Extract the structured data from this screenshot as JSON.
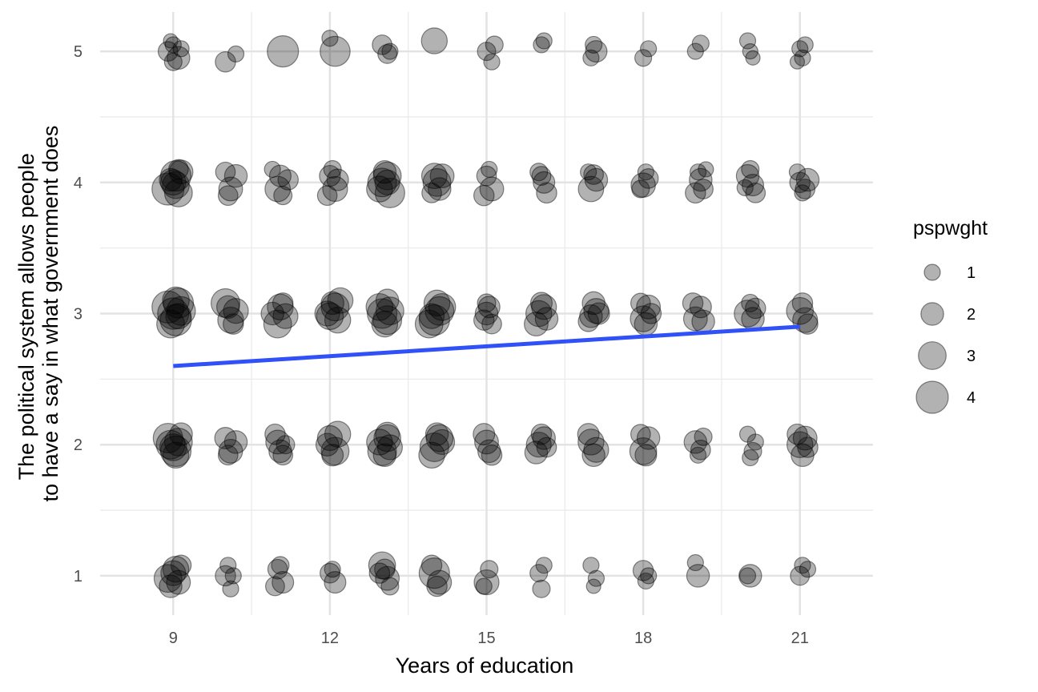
{
  "chart_data": {
    "type": "scatter",
    "xlabel": "Years of education",
    "ylabel_lines": [
      "The political system allows people",
      "to have a say in what government does"
    ],
    "x_ticks": [
      "9",
      "12",
      "15",
      "18",
      "21"
    ],
    "y_ticks": [
      "1",
      "2",
      "3",
      "4",
      "5"
    ],
    "xlim": [
      7.6,
      22.4
    ],
    "ylim": [
      0.7,
      5.3
    ],
    "grid": true,
    "legend": {
      "title": "pspwght",
      "position": "right",
      "labels": [
        "1",
        "2",
        "3",
        "4"
      ],
      "weights": [
        1,
        2,
        3,
        4
      ]
    },
    "point_color": "#000000",
    "point_alpha": 0.3,
    "trend_line": {
      "x": [
        9,
        21
      ],
      "y": [
        2.6,
        2.9
      ],
      "color": "#3050f8"
    },
    "points": [
      [
        9.0,
        5.05,
        1.0
      ],
      [
        8.9,
        5.0,
        1.5
      ],
      [
        9.1,
        4.95,
        2.0
      ],
      [
        9.0,
        4.92,
        1.2
      ],
      [
        9.15,
        5.02,
        1.0
      ],
      [
        8.95,
        5.08,
        0.8
      ],
      [
        10.0,
        4.92,
        1.6
      ],
      [
        10.2,
        4.98,
        1.0
      ],
      [
        11.1,
        5.0,
        3.8
      ],
      [
        12.0,
        5.1,
        1.0
      ],
      [
        12.1,
        5.0,
        3.5
      ],
      [
        13.0,
        5.05,
        1.5
      ],
      [
        13.1,
        4.98,
        1.4
      ],
      [
        13.15,
        5.0,
        1.0
      ],
      [
        14.0,
        5.08,
        2.6
      ],
      [
        15.0,
        5.0,
        1.3
      ],
      [
        15.1,
        4.92,
        1.0
      ],
      [
        15.15,
        5.05,
        1.2
      ],
      [
        16.05,
        5.05,
        1.0
      ],
      [
        16.1,
        5.08,
        1.0
      ],
      [
        17.0,
        4.95,
        1.0
      ],
      [
        17.1,
        5.0,
        1.8
      ],
      [
        17.05,
        5.05,
        1.1
      ],
      [
        18.0,
        4.95,
        1.1
      ],
      [
        18.1,
        5.02,
        1.0
      ],
      [
        19.0,
        5.0,
        1.0
      ],
      [
        19.1,
        5.06,
        1.1
      ],
      [
        20.0,
        5.08,
        1.0
      ],
      [
        20.05,
        5.0,
        0.9
      ],
      [
        20.1,
        4.95,
        0.8
      ],
      [
        21.0,
        5.02,
        1.0
      ],
      [
        20.95,
        4.92,
        0.8
      ],
      [
        21.1,
        5.05,
        1.0
      ],
      [
        21.05,
        4.95,
        1.0
      ],
      [
        8.9,
        3.95,
        4.0
      ],
      [
        9.05,
        4.05,
        3.6
      ],
      [
        9.1,
        3.92,
        3.0
      ],
      [
        9.0,
        4.0,
        2.5
      ],
      [
        9.15,
        4.08,
        2.2
      ],
      [
        8.95,
        4.02,
        2.0
      ],
      [
        9.05,
        3.98,
        2.8
      ],
      [
        9.1,
        4.1,
        1.5
      ],
      [
        10.0,
        4.08,
        1.5
      ],
      [
        10.1,
        3.95,
        2.2
      ],
      [
        10.2,
        4.05,
        2.0
      ],
      [
        10.05,
        3.9,
        1.5
      ],
      [
        11.0,
        3.95,
        2.5
      ],
      [
        11.05,
        4.05,
        1.8
      ],
      [
        11.1,
        3.9,
        1.3
      ],
      [
        10.9,
        4.1,
        1.0
      ],
      [
        11.2,
        4.02,
        1.6
      ],
      [
        12.0,
        4.05,
        1.7
      ],
      [
        12.1,
        3.95,
        2.4
      ],
      [
        11.95,
        3.9,
        1.5
      ],
      [
        12.15,
        4.02,
        1.8
      ],
      [
        12.05,
        4.1,
        1.2
      ],
      [
        13.0,
        4.0,
        3.2
      ],
      [
        13.1,
        4.05,
        3.0
      ],
      [
        12.95,
        3.95,
        2.6
      ],
      [
        13.15,
        3.92,
        3.4
      ],
      [
        13.05,
        4.08,
        2.0
      ],
      [
        13.1,
        4.0,
        2.4
      ],
      [
        14.0,
        4.05,
        2.5
      ],
      [
        14.1,
        3.95,
        2.0
      ],
      [
        13.95,
        3.92,
        1.5
      ],
      [
        14.15,
        4.05,
        2.2
      ],
      [
        14.05,
        4.0,
        3.0
      ],
      [
        15.0,
        4.05,
        1.5
      ],
      [
        15.1,
        3.95,
        2.2
      ],
      [
        14.95,
        3.9,
        1.6
      ],
      [
        15.05,
        4.1,
        1.0
      ],
      [
        16.0,
        4.08,
        1.2
      ],
      [
        16.1,
        4.0,
        1.8
      ],
      [
        16.15,
        3.92,
        1.6
      ],
      [
        16.05,
        4.05,
        1.4
      ],
      [
        17.0,
        3.95,
        2.5
      ],
      [
        17.1,
        4.02,
        2.0
      ],
      [
        17.05,
        4.06,
        1.5
      ],
      [
        16.95,
        4.08,
        1.0
      ],
      [
        18.0,
        3.98,
        2.3
      ],
      [
        18.1,
        4.03,
        1.5
      ],
      [
        17.95,
        3.95,
        1.2
      ],
      [
        18.05,
        4.08,
        1.0
      ],
      [
        19.0,
        3.92,
        1.6
      ],
      [
        19.1,
        4.02,
        2.0
      ],
      [
        19.15,
        3.95,
        1.5
      ],
      [
        19.05,
        4.08,
        1.0
      ],
      [
        19.2,
        4.1,
        0.9
      ],
      [
        20.0,
        4.05,
        2.0
      ],
      [
        20.1,
        3.98,
        1.8
      ],
      [
        20.15,
        3.92,
        1.5
      ],
      [
        20.05,
        4.1,
        1.2
      ],
      [
        19.95,
        3.96,
        1.0
      ],
      [
        21.0,
        4.0,
        1.6
      ],
      [
        21.1,
        3.95,
        1.5
      ],
      [
        21.15,
        4.02,
        2.0
      ],
      [
        20.95,
        4.08,
        1.0
      ],
      [
        21.05,
        3.92,
        1.0
      ],
      [
        8.9,
        3.05,
        4.0
      ],
      [
        9.05,
        2.95,
        3.8
      ],
      [
        9.1,
        3.08,
        3.5
      ],
      [
        9.0,
        3.0,
        3.8
      ],
      [
        8.95,
        2.92,
        3.0
      ],
      [
        9.15,
        3.02,
        3.2
      ],
      [
        9.05,
        3.1,
        2.8
      ],
      [
        9.1,
        2.98,
        2.5
      ],
      [
        10.0,
        3.08,
        3.2
      ],
      [
        10.1,
        2.95,
        2.6
      ],
      [
        10.2,
        3.02,
        2.4
      ],
      [
        10.05,
        3.05,
        2.0
      ],
      [
        10.15,
        2.92,
        1.6
      ],
      [
        11.0,
        2.92,
        3.0
      ],
      [
        11.05,
        3.05,
        2.6
      ],
      [
        10.9,
        3.0,
        2.0
      ],
      [
        11.15,
        2.98,
        2.4
      ],
      [
        11.1,
        3.08,
        1.6
      ],
      [
        12.0,
        2.98,
        2.8
      ],
      [
        12.1,
        3.05,
        3.0
      ],
      [
        11.95,
        3.0,
        2.4
      ],
      [
        12.15,
        2.95,
        2.6
      ],
      [
        12.05,
        3.08,
        2.0
      ],
      [
        12.2,
        3.1,
        2.5
      ],
      [
        13.0,
        3.0,
        3.4
      ],
      [
        13.1,
        2.95,
        3.2
      ],
      [
        12.95,
        3.05,
        2.8
      ],
      [
        13.15,
        3.02,
        3.0
      ],
      [
        13.05,
        2.92,
        2.6
      ],
      [
        13.1,
        3.1,
        2.0
      ],
      [
        14.0,
        2.95,
        3.6
      ],
      [
        14.1,
        3.02,
        3.2
      ],
      [
        13.9,
        2.92,
        3.0
      ],
      [
        14.15,
        3.05,
        2.8
      ],
      [
        14.05,
        3.08,
        2.6
      ],
      [
        13.95,
        2.98,
        2.4
      ],
      [
        15.0,
        3.0,
        2.0
      ],
      [
        15.05,
        3.05,
        1.8
      ],
      [
        14.95,
        2.95,
        1.6
      ],
      [
        15.1,
        2.92,
        1.5
      ],
      [
        15.0,
        3.08,
        1.3
      ],
      [
        16.0,
        3.0,
        2.6
      ],
      [
        16.1,
        3.05,
        2.4
      ],
      [
        15.95,
        2.92,
        2.2
      ],
      [
        16.05,
        3.08,
        1.8
      ],
      [
        16.15,
        2.96,
        2.0
      ],
      [
        17.0,
        2.98,
        2.0
      ],
      [
        17.1,
        3.02,
        2.4
      ],
      [
        16.95,
        2.94,
        1.6
      ],
      [
        17.05,
        3.08,
        2.0
      ],
      [
        17.15,
        3.0,
        1.8
      ],
      [
        18.0,
        2.96,
        2.6
      ],
      [
        18.1,
        3.05,
        2.2
      ],
      [
        17.95,
        3.08,
        1.5
      ],
      [
        18.05,
        2.92,
        2.0
      ],
      [
        18.15,
        3.0,
        1.6
      ],
      [
        19.0,
        2.96,
        2.2
      ],
      [
        19.1,
        3.05,
        1.8
      ],
      [
        18.95,
        3.08,
        1.6
      ],
      [
        19.15,
        2.94,
        2.0
      ],
      [
        20.0,
        3.0,
        2.8
      ],
      [
        20.1,
        2.96,
        2.0
      ],
      [
        20.15,
        3.04,
        1.6
      ],
      [
        20.05,
        3.08,
        1.2
      ],
      [
        21.0,
        3.02,
        2.8
      ],
      [
        21.1,
        2.95,
        2.4
      ],
      [
        21.05,
        3.08,
        1.6
      ],
      [
        21.15,
        2.92,
        1.6
      ],
      [
        8.9,
        2.05,
        3.4
      ],
      [
        9.05,
        1.95,
        3.6
      ],
      [
        9.1,
        2.02,
        3.0
      ],
      [
        9.0,
        1.98,
        2.8
      ],
      [
        9.15,
        2.08,
        2.0
      ],
      [
        8.95,
        2.0,
        3.2
      ],
      [
        9.05,
        1.92,
        2.6
      ],
      [
        10.0,
        2.05,
        1.8
      ],
      [
        10.1,
        1.95,
        2.2
      ],
      [
        10.2,
        2.02,
        2.0
      ],
      [
        10.05,
        1.92,
        1.5
      ],
      [
        11.0,
        2.02,
        2.2
      ],
      [
        11.05,
        1.95,
        2.0
      ],
      [
        10.95,
        2.08,
        1.6
      ],
      [
        11.1,
        1.92,
        1.5
      ],
      [
        11.15,
        2.0,
        1.3
      ],
      [
        12.0,
        2.05,
        2.4
      ],
      [
        12.1,
        1.95,
        3.0
      ],
      [
        11.95,
        2.0,
        2.0
      ],
      [
        12.15,
        2.08,
        2.6
      ],
      [
        12.05,
        1.92,
        1.8
      ],
      [
        13.0,
        1.95,
        3.2
      ],
      [
        13.1,
        2.05,
        2.8
      ],
      [
        12.95,
        2.02,
        2.6
      ],
      [
        13.15,
        1.98,
        2.4
      ],
      [
        13.05,
        1.92,
        2.0
      ],
      [
        13.1,
        2.08,
        2.2
      ],
      [
        14.0,
        1.98,
        3.2
      ],
      [
        14.1,
        2.05,
        2.8
      ],
      [
        13.95,
        1.92,
        2.6
      ],
      [
        14.15,
        2.02,
        2.4
      ],
      [
        14.05,
        2.08,
        2.0
      ],
      [
        15.0,
        2.02,
        2.2
      ],
      [
        15.05,
        1.95,
        2.0
      ],
      [
        14.95,
        2.08,
        1.8
      ],
      [
        15.1,
        1.92,
        1.6
      ],
      [
        16.0,
        2.0,
        2.4
      ],
      [
        16.1,
        2.05,
        2.0
      ],
      [
        15.95,
        1.94,
        2.0
      ],
      [
        16.05,
        2.08,
        1.6
      ],
      [
        16.15,
        1.98,
        1.5
      ],
      [
        17.0,
        2.02,
        2.6
      ],
      [
        17.1,
        1.96,
        2.4
      ],
      [
        16.95,
        2.08,
        1.8
      ],
      [
        17.05,
        1.92,
        2.0
      ],
      [
        18.0,
        1.95,
        2.8
      ],
      [
        18.1,
        2.05,
        2.0
      ],
      [
        17.95,
        2.08,
        1.5
      ],
      [
        18.05,
        1.92,
        1.8
      ],
      [
        19.0,
        2.02,
        2.0
      ],
      [
        19.1,
        1.96,
        1.5
      ],
      [
        19.15,
        2.06,
        1.2
      ],
      [
        19.05,
        1.92,
        1.0
      ],
      [
        20.0,
        2.08,
        1.0
      ],
      [
        20.1,
        1.95,
        1.2
      ],
      [
        20.05,
        1.9,
        1.0
      ],
      [
        20.15,
        2.02,
        1.0
      ],
      [
        21.0,
        2.0,
        2.6
      ],
      [
        21.1,
        2.05,
        2.2
      ],
      [
        21.05,
        1.92,
        2.0
      ],
      [
        20.95,
        2.08,
        1.6
      ],
      [
        21.15,
        1.98,
        1.6
      ],
      [
        8.9,
        0.98,
        3.0
      ],
      [
        9.05,
        1.05,
        2.6
      ],
      [
        9.1,
        0.95,
        2.2
      ],
      [
        9.0,
        1.02,
        2.4
      ],
      [
        9.15,
        1.08,
        1.6
      ],
      [
        8.95,
        0.92,
        2.0
      ],
      [
        10.0,
        1.0,
        1.6
      ],
      [
        10.05,
        1.08,
        1.0
      ],
      [
        10.15,
        1.0,
        1.0
      ],
      [
        10.1,
        0.9,
        1.0
      ],
      [
        11.0,
        1.05,
        1.5
      ],
      [
        11.1,
        0.95,
        1.8
      ],
      [
        10.95,
        0.92,
        1.4
      ],
      [
        11.05,
        1.08,
        1.2
      ],
      [
        12.0,
        1.02,
        1.5
      ],
      [
        12.1,
        0.95,
        1.8
      ],
      [
        12.05,
        1.05,
        1.0
      ],
      [
        13.0,
        1.08,
        2.8
      ],
      [
        13.1,
        0.98,
        2.2
      ],
      [
        13.05,
        1.05,
        1.6
      ],
      [
        13.15,
        0.92,
        1.2
      ],
      [
        12.95,
        1.02,
        1.6
      ],
      [
        14.0,
        1.02,
        3.6
      ],
      [
        14.1,
        0.95,
        2.2
      ],
      [
        13.95,
        1.08,
        1.6
      ],
      [
        14.05,
        0.92,
        1.6
      ],
      [
        15.0,
        0.95,
        2.4
      ],
      [
        15.05,
        1.05,
        1.2
      ],
      [
        14.95,
        0.92,
        1.0
      ],
      [
        16.0,
        1.02,
        1.2
      ],
      [
        16.05,
        0.9,
        1.2
      ],
      [
        16.1,
        1.08,
        1.0
      ],
      [
        17.0,
        1.08,
        1.0
      ],
      [
        17.1,
        0.98,
        1.0
      ],
      [
        17.05,
        0.92,
        0.8
      ],
      [
        18.0,
        1.04,
        1.6
      ],
      [
        18.1,
        1.0,
        1.0
      ],
      [
        18.05,
        0.96,
        1.0
      ],
      [
        19.0,
        1.1,
        1.0
      ],
      [
        19.05,
        1.0,
        2.0
      ],
      [
        20.0,
        1.0,
        1.0
      ],
      [
        20.05,
        1.0,
        2.0
      ],
      [
        21.0,
        1.0,
        1.4
      ],
      [
        21.05,
        1.08,
        1.0
      ],
      [
        21.15,
        1.05,
        1.0
      ]
    ]
  }
}
